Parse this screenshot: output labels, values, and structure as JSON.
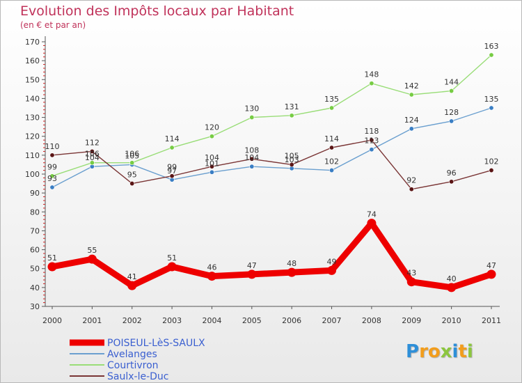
{
  "chart_data": {
    "type": "line",
    "title": "Evolution des Impôts locaux par Habitant",
    "subtitle": "(en € et par an)",
    "x": [
      "2000",
      "2001",
      "2002",
      "2003",
      "2004",
      "2005",
      "2006",
      "2007",
      "2008",
      "2009",
      "2010",
      "2011"
    ],
    "y_ticks": [
      30,
      40,
      50,
      60,
      70,
      80,
      90,
      100,
      110,
      120,
      130,
      140,
      150,
      160,
      170
    ],
    "ylim": [
      30,
      170
    ],
    "xlabel": "",
    "ylabel": "",
    "grid": false,
    "legend_position": "bottom-left",
    "series": [
      {
        "name": "POISEUL-LèS-SAULX",
        "color": "#ee0000",
        "marker_color": "#ee0000",
        "values": [
          51,
          55,
          41,
          51,
          46,
          47,
          48,
          49,
          74,
          43,
          40,
          47
        ],
        "emphasis": true
      },
      {
        "name": "Avelanges",
        "color": "#6a9fcf",
        "marker_color": "#3a7ec4",
        "values": [
          93,
          104,
          105,
          97,
          101,
          104,
          103,
          102,
          113,
          124,
          128,
          135
        ]
      },
      {
        "name": "Courtivron",
        "color": "#99dd77",
        "marker_color": "#77cc44",
        "values": [
          99,
          106,
          106,
          114,
          120,
          130,
          131,
          135,
          148,
          142,
          144,
          163
        ]
      },
      {
        "name": "Saulx-le-Duc",
        "color": "#7a3535",
        "marker_color": "#5a1515",
        "values": [
          110,
          112,
          95,
          99,
          104,
          108,
          105,
          114,
          118,
          92,
          96,
          102
        ]
      }
    ]
  },
  "logo": {
    "letters": [
      "P",
      "r",
      "o",
      "x",
      "i",
      "t",
      "i"
    ],
    "colors": [
      "#2e8fd8",
      "#f29d1c",
      "#f29d1c",
      "#8cc63f",
      "#2e8fd8",
      "#f29d1c",
      "#8cc63f"
    ]
  }
}
